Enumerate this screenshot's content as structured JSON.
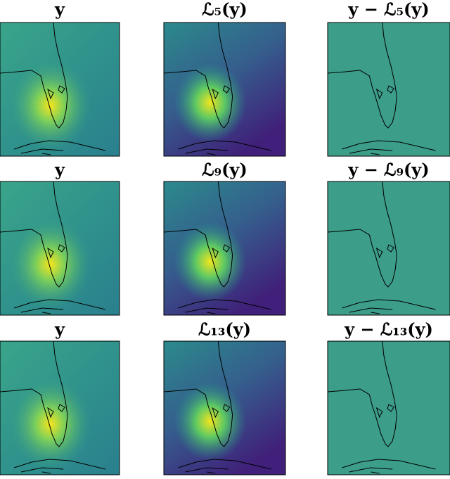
{
  "panels": [
    [
      {
        "title": "y"
      },
      {
        "title": "ℒ₅(y)"
      },
      {
        "title": "y − ℒ₅(y)"
      }
    ],
    [
      {
        "title": "y"
      },
      {
        "title": "ℒ₉(y)"
      },
      {
        "title": "y − ℒ₉(y)"
      }
    ],
    [
      {
        "title": "y"
      },
      {
        "title": "ℒ₁₃(y)"
      },
      {
        "title": "y − ℒ₁₃(y)"
      }
    ]
  ]
}
